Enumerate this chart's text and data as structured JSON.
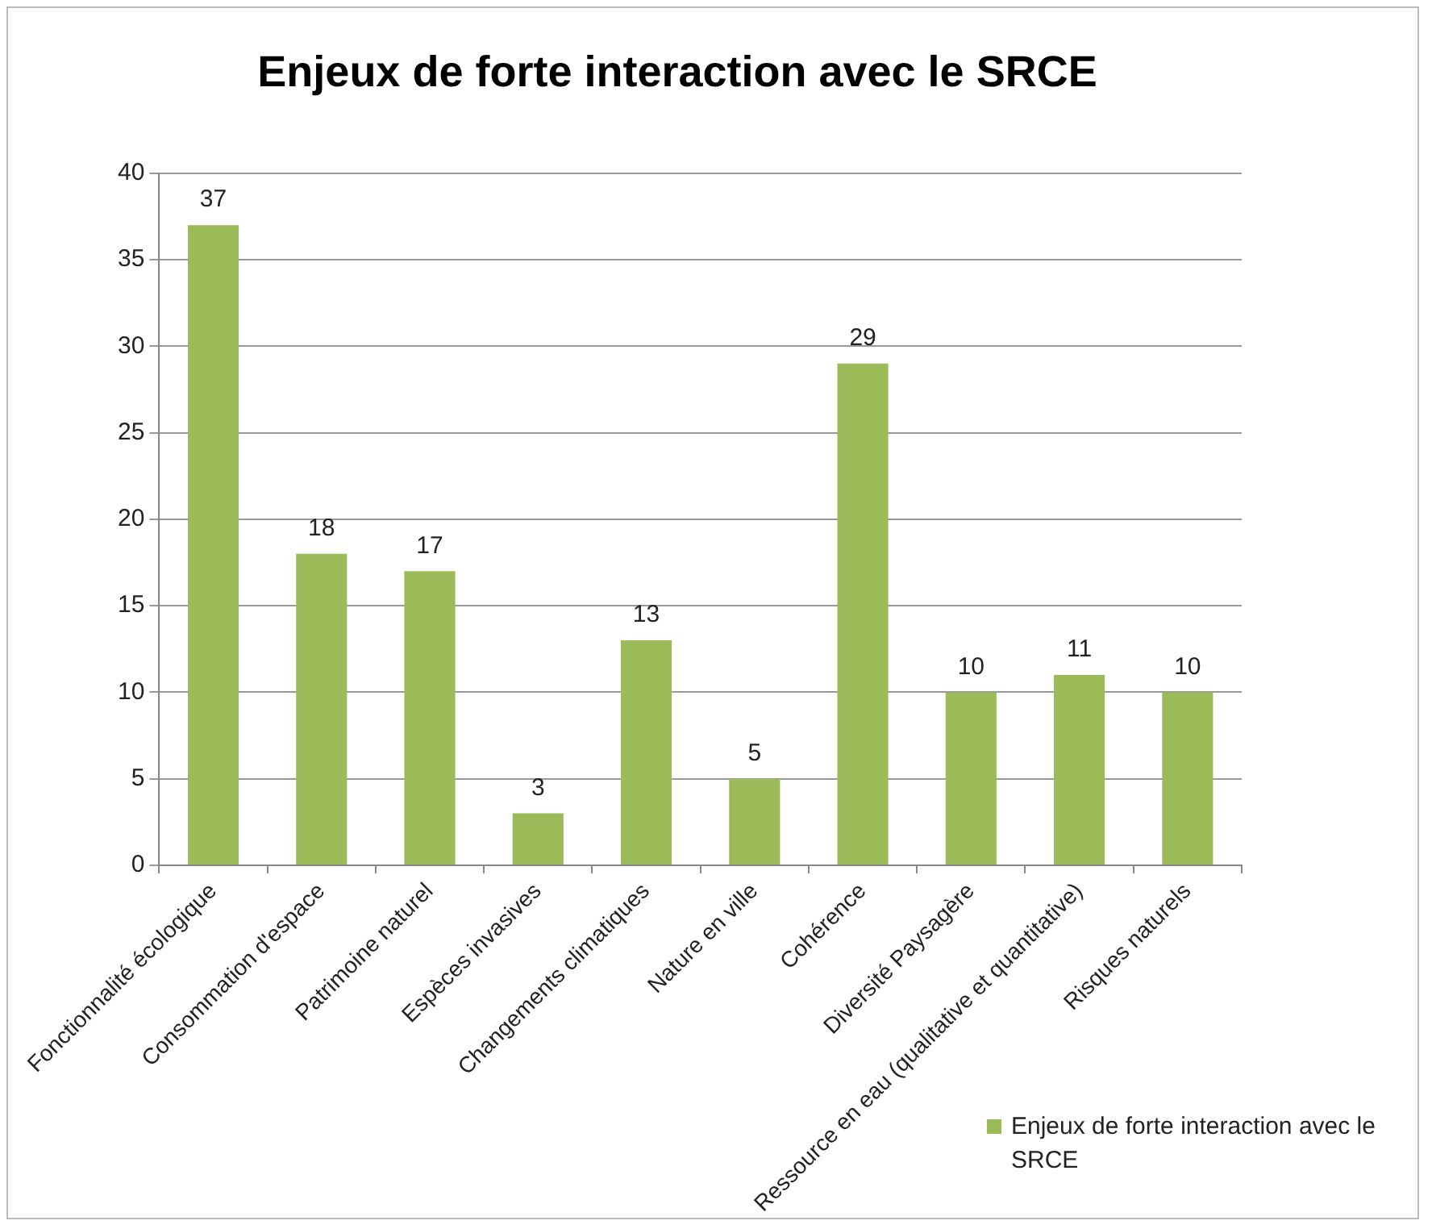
{
  "chart_data": {
    "type": "bar",
    "title": "Enjeux de forte interaction avec le SRCE",
    "categories": [
      "Fonctionnalité écologique",
      "Consommation d'espace",
      "Patrimoine naturel",
      "Espèces invasives",
      "Changements climatiques",
      "Nature en ville",
      "Cohérence",
      "Diversité Paysagère",
      "Ressource en eau (qualitative et quantitative)",
      "Risques naturels"
    ],
    "series": [
      {
        "name": "Enjeux de forte interaction avec le SRCE",
        "color": "#9bbb59",
        "values": [
          37,
          18,
          17,
          3,
          13,
          5,
          29,
          10,
          11,
          10
        ]
      }
    ],
    "ylim": [
      0,
      40
    ],
    "yticks": [
      0,
      5,
      10,
      15,
      20,
      25,
      30,
      35,
      40
    ],
    "grid": "y",
    "legend": "bottom right",
    "data_labels": true
  }
}
